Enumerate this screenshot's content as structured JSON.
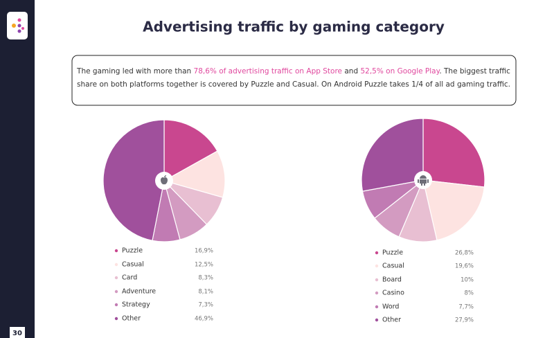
{
  "title": "Advertising traffic by gaming category",
  "description": [
    [
      "The gaming led with more than ",
      {
        "text": "78,6% of advertising traffic on App Store",
        "color": "#e0489e"
      },
      " and ",
      {
        "text": "52,5% on Google Play",
        "color": "#e0489e"
      },
      ". The biggest traffic"
    ],
    [
      "share on both platforms together is covered by Puzzle and Casual. On Android Puzzle takes 1/4 of all ad gaming traffic."
    ]
  ],
  "page_number": 30,
  "chart_data": [
    {
      "type": "pie",
      "categories": [
        "Puzzle",
        "Casual",
        "Card",
        "Adventure",
        "Strategy",
        "Other"
      ],
      "values": [
        16.9,
        12.5,
        8.3,
        8.1,
        7.3,
        46.9
      ],
      "value_labels": [
        "16,9%",
        "12,5%",
        "8,3%",
        "8,1%",
        "7,3%",
        "46,9%"
      ],
      "colors": [
        "#c9478f",
        "#fde3e1",
        "#e8bfd2",
        "#d39bc1",
        "#c17bb3",
        "#a0509c"
      ]
    },
    {
      "type": "pie",
      "categories": [
        "Puzzle",
        "Casual",
        "Board",
        "Casino",
        "Word",
        "Other"
      ],
      "values": [
        26.8,
        19.6,
        10,
        8,
        7.7,
        27.9
      ],
      "value_labels": [
        "26,8%",
        "19,6%",
        "10%",
        "8%",
        "7,7%",
        "27,9%"
      ],
      "colors": [
        "#c9478f",
        "#fde3e1",
        "#e8bfd2",
        "#d39bc1",
        "#c17bb3",
        "#a0509c"
      ]
    }
  ]
}
